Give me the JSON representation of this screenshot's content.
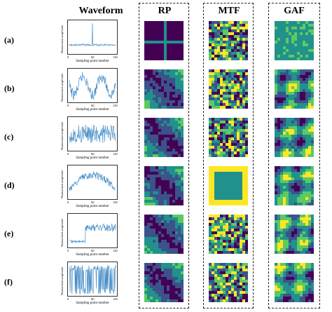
{
  "headers": {
    "waveform": "Waveform",
    "rp": "RP",
    "mtf": "MTF",
    "gaf": "GAF"
  },
  "row_labels": [
    "(a)",
    "(b)",
    "(c)",
    "(d)",
    "(e)",
    "(f)"
  ],
  "axis": {
    "ylabel": "Normalized amplitude",
    "xlabel": "Sampling point number",
    "xticks": [
      "0",
      "60",
      "120"
    ]
  },
  "colors": {
    "line": "#4a90c9",
    "viridis_dark": "#440154",
    "viridis_mid": "#21918c",
    "viridis_green": "#5ec962",
    "viridis_yellow": "#fde725"
  }
}
